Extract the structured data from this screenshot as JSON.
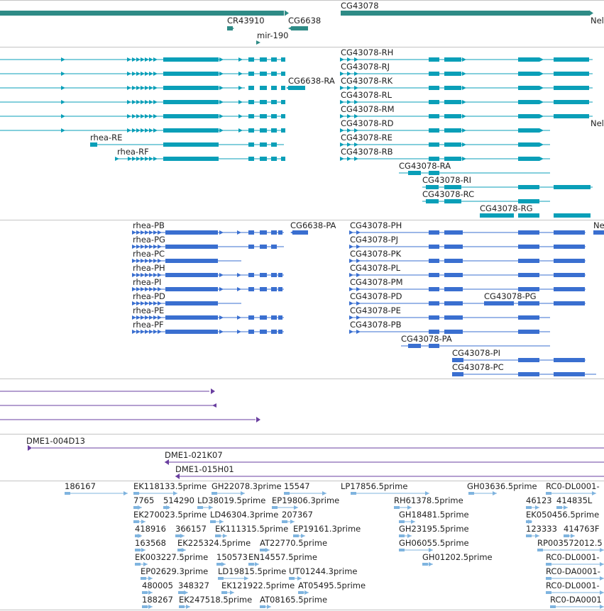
{
  "tracks": {
    "genes": {
      "labels": [
        "CG43078",
        "CR43910",
        "CG6638",
        "mir-190",
        "Nel"
      ]
    },
    "transcripts_rna": {
      "labels": [
        "CG43078-RH",
        "CG43078-RJ",
        "CG6638-RA",
        "CG43078-RK",
        "CG43078-RL",
        "CG43078-RM",
        "CG43078-RD",
        "Nel",
        "rhea-RE",
        "CG43078-RE",
        "rhea-RF",
        "CG43078-RB",
        "CG43078-RA",
        "CG43078-RI",
        "CG43078-RC",
        "CG43078-RG"
      ]
    },
    "transcripts_protein": {
      "labels": [
        "rhea-PB",
        "CG6638-PA",
        "CG43078-PH",
        "Nel",
        "rhea-PG",
        "CG43078-PJ",
        "rhea-PC",
        "CG43078-PK",
        "rhea-PH",
        "CG43078-PL",
        "rhea-PI",
        "CG43078-PM",
        "rhea-PD",
        "CG43078-PD",
        "CG43078-PG",
        "rhea-PE",
        "CG43078-PE",
        "rhea-PF",
        "CG43078-PB",
        "CG43078-PA",
        "CG43078-PI",
        "CG43078-PC"
      ]
    },
    "clones": {
      "labels": [
        "DME1-004D13",
        "DME1-021K07",
        "DME1-015H01"
      ]
    },
    "ests": {
      "labels": [
        "186167",
        "EK118133.5prime",
        "GH22078.3prime",
        "15547",
        "LP17856.5prime",
        "GH03636.5prime",
        "RC0-DL0001-",
        "7765",
        "514290",
        "LD38019.5prime",
        "EP19806.3prime",
        "RH61378.5prime",
        "46123",
        "414835L",
        "EK270023.5prime",
        "LD46304.3prime",
        "207367",
        "GH18481.5prime",
        "EK050456.5prime",
        "418916",
        "366157",
        "EK111315.5prime",
        "EP19161.3prime",
        "GH23195.5prime",
        "123333",
        "414763F",
        "163568",
        "EK225324.5prime",
        "AT22770.5prime",
        "GH06055.5prime",
        "RP003572012.5",
        "EK003227.5prime",
        "150573",
        "EN14557.5prime",
        "GH01202.5prime",
        "RC0-DL0001-",
        "EP02629.3prime",
        "LD19815.5prime",
        "UT01244.3prime",
        "RC0-DA0001-",
        "480005",
        "348327",
        "EK121922.5prime",
        "AT05495.5prime",
        "RC0-DL0001-",
        "188267",
        "EK247518.5prime",
        "AT08165.5prime",
        "RC0-DA0001"
      ]
    }
  },
  "colors": {
    "gene": "#2e8b86",
    "rna": "#0a9fb8",
    "protein": "#3a6fd0",
    "clone": "#6a3fa0",
    "est": "#7fb4df",
    "separator": "#c4c4c4",
    "text": "#222222"
  },
  "icons": [
    "strand-arrow-right-icon",
    "strand-arrow-left-icon"
  ]
}
